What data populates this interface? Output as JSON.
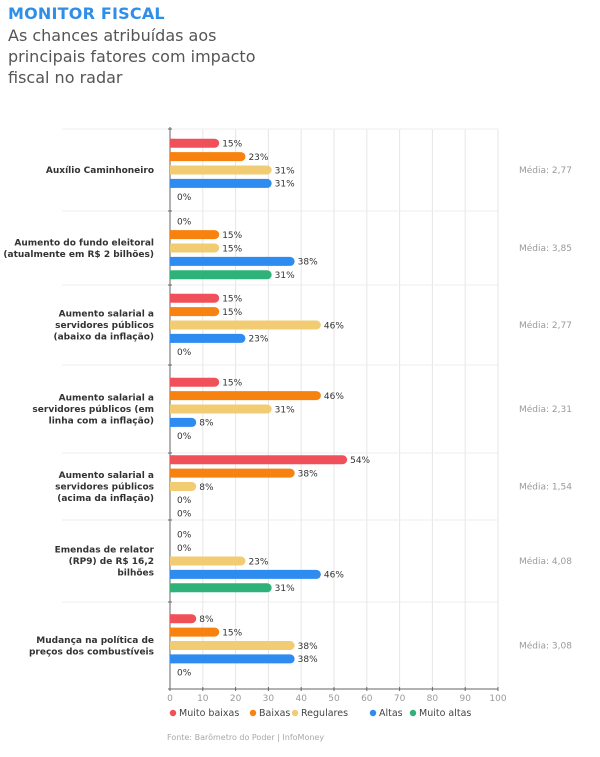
{
  "header": {
    "title": "MONITOR FISCAL",
    "subtitle": "As chances atribuídas aos principais fatores com impacto fiscal no radar"
  },
  "source": "Fonte: Barômetro do Poder | InfoMoney",
  "colors": {
    "Muito baixas": "#f0505a",
    "Baixas": "#f7820f",
    "Regulares": "#f2cc73",
    "Altas": "#2e8bef",
    "Muito altas": "#2fb27a"
  },
  "chart_data": {
    "type": "bar",
    "orientation": "horizontal",
    "title": "MONITOR FISCAL",
    "subtitle": "As chances atribuídas aos principais fatores com impacto fiscal no radar",
    "xlabel": "",
    "ylabel": "",
    "xlim": [
      0,
      100
    ],
    "xticks": [
      0,
      10,
      20,
      30,
      40,
      50,
      60,
      70,
      80,
      90,
      100
    ],
    "grid": true,
    "legend_position": "bottom",
    "value_suffix": "%",
    "series_names": [
      "Muito baixas",
      "Baixas",
      "Regulares",
      "Altas",
      "Muito altas"
    ],
    "categories": [
      {
        "label": [
          "Auxílio Caminhoneiro"
        ],
        "values": [
          15,
          23,
          31,
          31,
          0
        ],
        "media": "Média: 2,77"
      },
      {
        "label": [
          "Aumento do fundo eleitoral",
          "(atualmente em R$ 2 bilhões)"
        ],
        "values": [
          0,
          15,
          15,
          38,
          31
        ],
        "media": "Média: 3,85"
      },
      {
        "label": [
          "Aumento salarial a",
          "servidores públicos",
          "(abaixo da inflação)"
        ],
        "values": [
          15,
          15,
          46,
          23,
          0
        ],
        "media": "Média: 2,77"
      },
      {
        "label": [
          "Aumento salarial a",
          "servidores públicos (em",
          "linha com a inflação)"
        ],
        "values": [
          15,
          46,
          31,
          8,
          0
        ],
        "media": "Média: 2,31"
      },
      {
        "label": [
          "Aumento salarial a",
          "servidores públicos",
          "(acima da inflação)"
        ],
        "values": [
          54,
          38,
          8,
          0,
          0
        ],
        "media": "Média: 1,54"
      },
      {
        "label": [
          "Emendas de relator",
          "(RP9) de R$ 16,2",
          "bilhões"
        ],
        "values": [
          0,
          0,
          23,
          46,
          31
        ],
        "media": "Média: 4,08"
      },
      {
        "label": [
          "Mudança na política de",
          "preços dos combustíveis"
        ],
        "values": [
          8,
          15,
          38,
          38,
          0
        ],
        "media": "Média: 3,08"
      }
    ]
  }
}
